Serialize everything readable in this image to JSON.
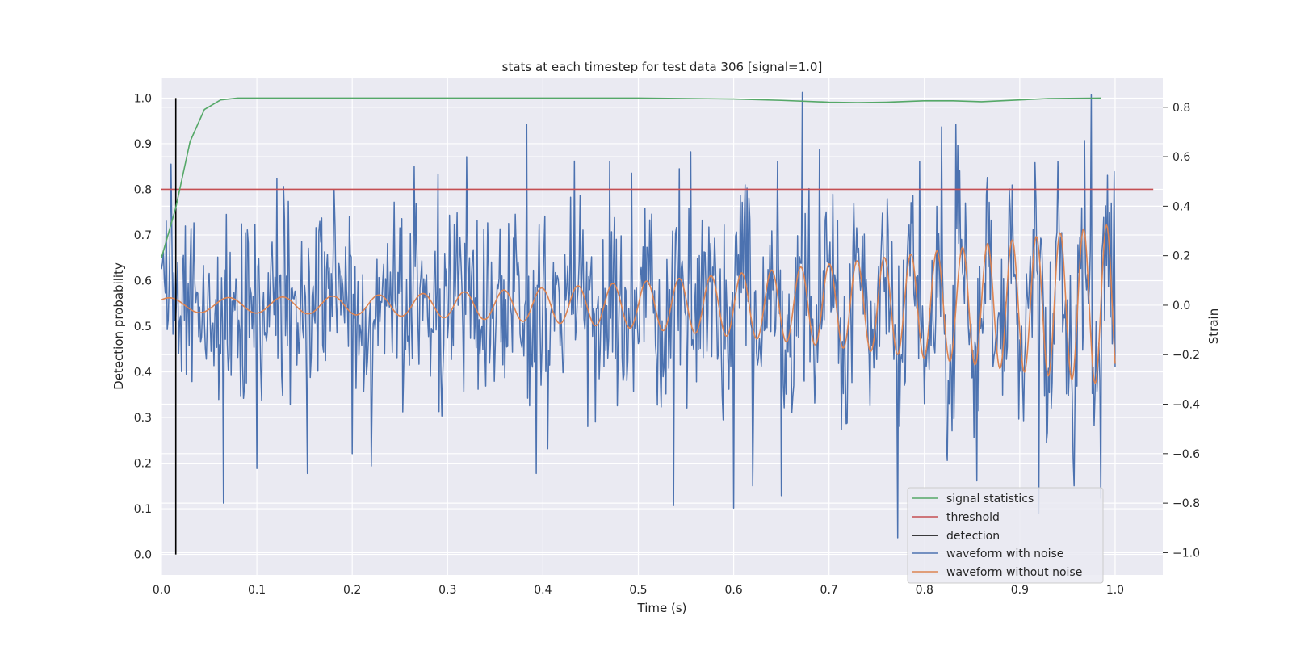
{
  "chart_data": {
    "type": "line",
    "title": "stats at each timestep for test data 306 [signal=1.0]",
    "xlabel": "Time (s)",
    "ylabel_left": "Detection probability",
    "ylabel_right": "Strain",
    "xlim": [
      0.0,
      1.05
    ],
    "ylim_left": [
      -0.045,
      1.045
    ],
    "ylim_right": [
      -1.09,
      0.92
    ],
    "xticks": [
      "0.0",
      "0.1",
      "0.2",
      "0.3",
      "0.4",
      "0.5",
      "0.6",
      "0.7",
      "0.8",
      "0.9",
      "1.0"
    ],
    "xtick_values": [
      0.0,
      0.1,
      0.2,
      0.3,
      0.4,
      0.5,
      0.6,
      0.7,
      0.8,
      0.9,
      1.0
    ],
    "yticks_left": [
      "0.0",
      "0.1",
      "0.2",
      "0.3",
      "0.4",
      "0.5",
      "0.6",
      "0.7",
      "0.8",
      "0.9",
      "1.0"
    ],
    "ytick_values_left": [
      0.0,
      0.1,
      0.2,
      0.3,
      0.4,
      0.5,
      0.6,
      0.7,
      0.8,
      0.9,
      1.0
    ],
    "yticks_right": [
      "−1.0",
      "−0.8",
      "−0.6",
      "−0.4",
      "−0.2",
      "0.0",
      "0.2",
      "0.4",
      "0.6",
      "0.8"
    ],
    "ytick_values_right": [
      -1.0,
      -0.8,
      -0.6,
      -0.4,
      -0.2,
      0.0,
      0.2,
      0.4,
      0.6,
      0.8
    ],
    "grid": true,
    "legend_position": "lower-right",
    "series": [
      {
        "name": "signal statistics",
        "color": "#55a868",
        "axis": "left",
        "x": [
          0.0,
          0.015,
          0.03,
          0.045,
          0.062,
          0.08,
          0.1,
          0.3,
          0.5,
          0.6,
          0.65,
          0.7,
          0.73,
          0.76,
          0.8,
          0.83,
          0.86,
          0.9,
          0.93,
          0.985
        ],
        "y": [
          0.65,
          0.76,
          0.905,
          0.975,
          0.996,
          1.0,
          1.0,
          1.0,
          1.0,
          0.998,
          0.995,
          0.991,
          0.99,
          0.991,
          0.994,
          0.994,
          0.992,
          0.996,
          0.999,
          1.0
        ]
      },
      {
        "name": "threshold",
        "color": "#c44e52",
        "axis": "left",
        "x": [
          0.0,
          1.04
        ],
        "y": [
          0.8,
          0.8
        ]
      },
      {
        "name": "detection",
        "color": "#000000",
        "axis": "left",
        "x": [
          0.015,
          0.015
        ],
        "y": [
          0.0,
          1.0
        ]
      },
      {
        "name": "waveform with noise",
        "color": "#4c72b0",
        "axis": "right",
        "x_range": [
          0.0,
          1.0
        ],
        "num_points": 1000,
        "noise_std": 0.25,
        "peaks": [
          [
            0.01,
            0.57
          ],
          [
            0.065,
            -0.8
          ],
          [
            0.1,
            -0.66
          ],
          [
            0.128,
            0.48
          ],
          [
            0.153,
            -0.68
          ],
          [
            0.2,
            -0.6
          ],
          [
            0.22,
            -0.65
          ],
          [
            0.265,
            0.56
          ],
          [
            0.29,
            0.53
          ],
          [
            0.32,
            0.6
          ],
          [
            0.383,
            0.73
          ],
          [
            0.393,
            -0.68
          ],
          [
            0.405,
            -0.58
          ],
          [
            0.47,
            0.58
          ],
          [
            0.537,
            -0.81
          ],
          [
            0.555,
            0.62
          ],
          [
            0.6,
            -0.82
          ],
          [
            0.62,
            -0.73
          ],
          [
            0.65,
            -0.77
          ],
          [
            0.672,
            0.86
          ],
          [
            0.69,
            0.63
          ],
          [
            0.772,
            -0.94
          ],
          [
            0.795,
            0.58
          ],
          [
            0.818,
            0.72
          ],
          [
            0.833,
            0.73
          ],
          [
            0.855,
            -0.71
          ],
          [
            0.92,
            -0.84
          ],
          [
            0.94,
            0.58
          ],
          [
            0.957,
            -0.73
          ],
          [
            0.975,
            0.85
          ],
          [
            0.985,
            -0.78
          ],
          [
            0.999,
            0.54
          ]
        ]
      },
      {
        "name": "waveform without noise",
        "color": "#dd8452",
        "axis": "right",
        "x_range": [
          0.0,
          1.0
        ],
        "num_points": 1000,
        "chirp": {
          "amp_start": 0.03,
          "amp_end": 0.33,
          "freq_start": 15.0,
          "freq_end": 42.0,
          "phase": 0.8
        }
      }
    ]
  }
}
